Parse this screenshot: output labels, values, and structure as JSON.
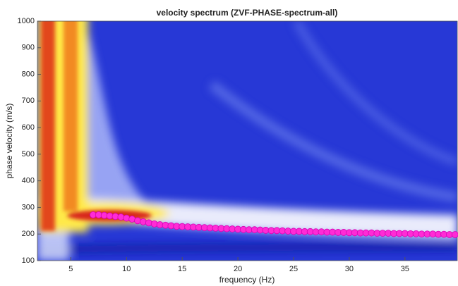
{
  "chart_data": {
    "type": "scatter",
    "title": "velocity spectrum (ZVF-PHASE-spectrum-all)",
    "x_label": "frequency (Hz)",
    "y_label": "phase velocity (m/s)",
    "xlim": [
      2,
      39.7
    ],
    "ylim": [
      100,
      1000
    ],
    "xticks": [
      5,
      10,
      15,
      20,
      25,
      30,
      35
    ],
    "yticks": [
      100,
      200,
      300,
      400,
      500,
      600,
      700,
      800,
      900,
      1000
    ],
    "series": [
      {
        "color": "#ff2bd6",
        "x": [
          7,
          7.5,
          8,
          8.5,
          9,
          9.5,
          10,
          10.5,
          11,
          11.5,
          12,
          12.5,
          13,
          13.5,
          14,
          14.5,
          15,
          15.5,
          16,
          16.5,
          17,
          17.5,
          18,
          18.5,
          19,
          19.5,
          20,
          20.5,
          21,
          21.5,
          22,
          22.5,
          23,
          23.5,
          24,
          24.5,
          25,
          25.5,
          26,
          26.5,
          27,
          27.5,
          28,
          28.5,
          29,
          29.5,
          30,
          30.5,
          31,
          31.5,
          32,
          32.5,
          33,
          33.5,
          34,
          34.5,
          35,
          35.5,
          36,
          36.5,
          37,
          37.5,
          38,
          38.5,
          39,
          39.5
        ],
        "values": [
          272,
          272,
          270,
          268,
          266,
          264,
          260,
          256,
          250,
          246,
          242,
          238,
          235,
          233,
          231,
          229,
          228,
          227,
          226,
          225,
          224,
          223,
          222,
          221,
          220,
          219,
          218,
          217,
          216,
          216,
          215,
          214,
          213,
          213,
          212,
          211,
          210,
          210,
          209,
          209,
          208,
          208,
          207,
          207,
          206,
          206,
          205,
          205,
          204,
          204,
          204,
          203,
          203,
          203,
          202,
          202,
          202,
          201,
          201,
          200,
          200,
          200,
          199,
          199,
          198,
          198
        ]
      }
    ]
  }
}
